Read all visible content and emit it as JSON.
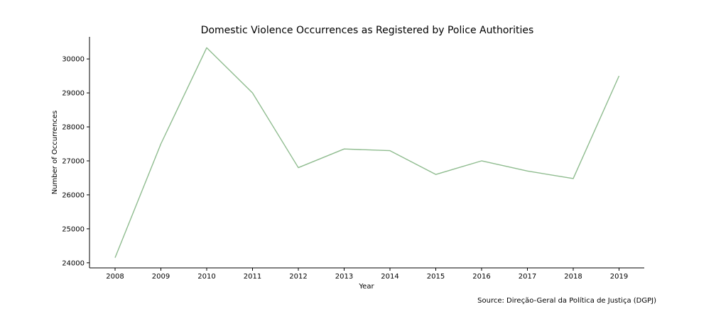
{
  "chart_data": {
    "type": "line",
    "title": "Domestic Violence Occurrences as Registered by Police Authorities",
    "xlabel": "Year",
    "ylabel": "Number of Occurrences",
    "source": "Source: Direção-Geral da Política de Justiça (DGPJ)",
    "ylim": [
      23850,
      30650
    ],
    "yticks": [
      24000,
      25000,
      26000,
      27000,
      28000,
      29000,
      30000
    ],
    "x": [
      2008,
      2009,
      2010,
      2011,
      2012,
      2013,
      2014,
      2015,
      2016,
      2017,
      2018,
      2019
    ],
    "series": [
      {
        "values": [
          24150,
          27500,
          30330,
          29000,
          26800,
          27350,
          27300,
          26600,
          27000,
          26700,
          26480,
          29500
        ]
      }
    ],
    "grid": false,
    "legend": "none",
    "line_color": "#8fbc8f"
  }
}
